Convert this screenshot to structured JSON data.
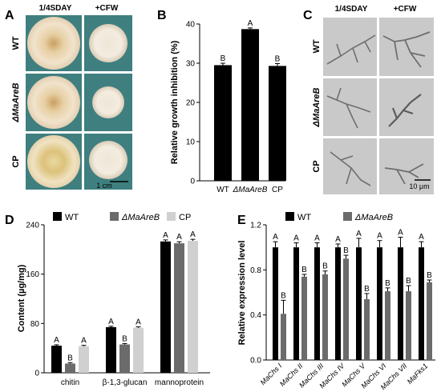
{
  "panels": {
    "A": {
      "letter": "A",
      "col_headers": [
        "1/4SDAY",
        "+CFW"
      ],
      "row_labels": [
        "WT",
        "ΔMaAreB",
        "CP"
      ],
      "scale_label": "1 cm"
    },
    "B": {
      "letter": "B"
    },
    "C": {
      "letter": "C",
      "col_headers": [
        "1/4SDAY",
        "+CFW"
      ],
      "row_labels": [
        "WT",
        "ΔMaAreB",
        "CP"
      ],
      "scale_label": "10 μm"
    },
    "D": {
      "letter": "D"
    },
    "E": {
      "letter": "E"
    }
  },
  "colors": {
    "plate_bg": "#3f7f80",
    "colony_edge": "#e9d9c0",
    "colony_center": "#d9b560",
    "micro_bg": "#c9c9c9",
    "wt": "#000000",
    "mutant": "#6b6b6b",
    "cp": "#d0d0d0"
  },
  "chart_data": [
    {
      "panel": "B",
      "type": "bar",
      "ylabel": "Relative growth  inhibition (%)",
      "categories": [
        "WT",
        "ΔMaAreB",
        "CP"
      ],
      "values": [
        29.5,
        38.7,
        29.3
      ],
      "errors": [
        0.5,
        0.3,
        0.6
      ],
      "letters": [
        "B",
        "A",
        "B"
      ],
      "ylim": [
        0,
        40
      ],
      "yticks": [
        "0",
        "10",
        "20",
        "30",
        "40"
      ]
    },
    {
      "panel": "D",
      "type": "bar",
      "ylabel": "Content (µg/mg)",
      "categories": [
        "chitin",
        "β-1,3-glucan",
        "mannoprotein"
      ],
      "series": [
        {
          "name": "WT",
          "values": [
            44,
            74,
            213
          ],
          "errors": [
            1.5,
            1.5,
            2.5
          ],
          "letters": [
            "A",
            "A",
            "A"
          ]
        },
        {
          "name": "ΔMaAreB",
          "values": [
            15,
            46,
            210
          ],
          "errors": [
            1.5,
            1.5,
            2.5
          ],
          "letters": [
            "B",
            "B",
            "A"
          ]
        },
        {
          "name": "CP",
          "values": [
            43,
            73,
            214
          ],
          "errors": [
            1.5,
            1.5,
            2.5
          ],
          "letters": [
            "A",
            "A",
            "A"
          ]
        }
      ],
      "ylim": [
        0,
        240
      ],
      "yticks": [
        "0",
        "80",
        "160",
        "240"
      ]
    },
    {
      "panel": "E",
      "type": "bar",
      "ylabel": "Relative expression level",
      "categories": [
        "MaChs I",
        "MaChs II",
        "MaChs III",
        "MaChs IV",
        "MaChs V",
        "MaChs VI",
        "MaChs VII",
        "MaFks1"
      ],
      "series": [
        {
          "name": "WT",
          "values": [
            1.0,
            1.0,
            1.0,
            1.0,
            1.0,
            1.0,
            1.0,
            1.0
          ],
          "errors": [
            0.05,
            0.04,
            0.04,
            0.03,
            0.08,
            0.06,
            0.09,
            0.05
          ],
          "letters": [
            "A",
            "A",
            "A",
            "A",
            "A",
            "A",
            "A",
            "A"
          ]
        },
        {
          "name": "ΔMaAreB",
          "values": [
            0.41,
            0.74,
            0.76,
            0.9,
            0.54,
            0.61,
            0.61,
            0.69
          ],
          "errors": [
            0.12,
            0.02,
            0.03,
            0.03,
            0.05,
            0.03,
            0.05,
            0.02
          ],
          "letters": [
            "B",
            "B",
            "B",
            "B",
            "B",
            "B",
            "B",
            "B"
          ]
        }
      ],
      "ylim": [
        0,
        1.2
      ],
      "yticks": [
        "0.0",
        "0.4",
        "0.8",
        "1.2"
      ]
    }
  ]
}
